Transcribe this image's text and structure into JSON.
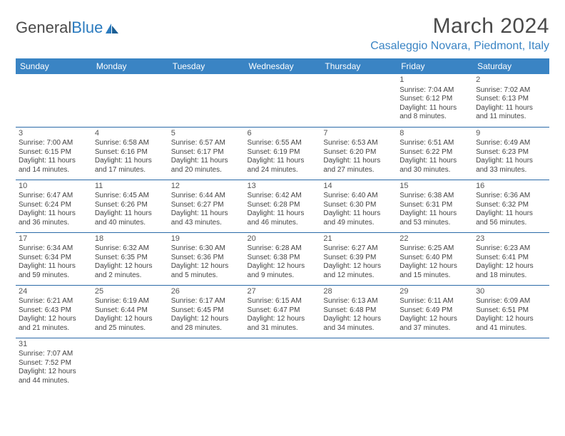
{
  "brand": {
    "part1": "General",
    "part2": "Blue"
  },
  "title": "March 2024",
  "location": "Casaleggio Novara, Piedmont, Italy",
  "colors": {
    "header_bg": "#3a84c4",
    "header_text": "#ffffff",
    "accent": "#2b7bbf",
    "cell_border": "#2b6aa8",
    "body_text": "#444444"
  },
  "weekdays": [
    "Sunday",
    "Monday",
    "Tuesday",
    "Wednesday",
    "Thursday",
    "Friday",
    "Saturday"
  ],
  "weeks": [
    [
      null,
      null,
      null,
      null,
      null,
      {
        "n": "1",
        "sr": "Sunrise: 7:04 AM",
        "ss": "Sunset: 6:12 PM",
        "dl1": "Daylight: 11 hours",
        "dl2": "and 8 minutes."
      },
      {
        "n": "2",
        "sr": "Sunrise: 7:02 AM",
        "ss": "Sunset: 6:13 PM",
        "dl1": "Daylight: 11 hours",
        "dl2": "and 11 minutes."
      }
    ],
    [
      {
        "n": "3",
        "sr": "Sunrise: 7:00 AM",
        "ss": "Sunset: 6:15 PM",
        "dl1": "Daylight: 11 hours",
        "dl2": "and 14 minutes."
      },
      {
        "n": "4",
        "sr": "Sunrise: 6:58 AM",
        "ss": "Sunset: 6:16 PM",
        "dl1": "Daylight: 11 hours",
        "dl2": "and 17 minutes."
      },
      {
        "n": "5",
        "sr": "Sunrise: 6:57 AM",
        "ss": "Sunset: 6:17 PM",
        "dl1": "Daylight: 11 hours",
        "dl2": "and 20 minutes."
      },
      {
        "n": "6",
        "sr": "Sunrise: 6:55 AM",
        "ss": "Sunset: 6:19 PM",
        "dl1": "Daylight: 11 hours",
        "dl2": "and 24 minutes."
      },
      {
        "n": "7",
        "sr": "Sunrise: 6:53 AM",
        "ss": "Sunset: 6:20 PM",
        "dl1": "Daylight: 11 hours",
        "dl2": "and 27 minutes."
      },
      {
        "n": "8",
        "sr": "Sunrise: 6:51 AM",
        "ss": "Sunset: 6:22 PM",
        "dl1": "Daylight: 11 hours",
        "dl2": "and 30 minutes."
      },
      {
        "n": "9",
        "sr": "Sunrise: 6:49 AM",
        "ss": "Sunset: 6:23 PM",
        "dl1": "Daylight: 11 hours",
        "dl2": "and 33 minutes."
      }
    ],
    [
      {
        "n": "10",
        "sr": "Sunrise: 6:47 AM",
        "ss": "Sunset: 6:24 PM",
        "dl1": "Daylight: 11 hours",
        "dl2": "and 36 minutes."
      },
      {
        "n": "11",
        "sr": "Sunrise: 6:45 AM",
        "ss": "Sunset: 6:26 PM",
        "dl1": "Daylight: 11 hours",
        "dl2": "and 40 minutes."
      },
      {
        "n": "12",
        "sr": "Sunrise: 6:44 AM",
        "ss": "Sunset: 6:27 PM",
        "dl1": "Daylight: 11 hours",
        "dl2": "and 43 minutes."
      },
      {
        "n": "13",
        "sr": "Sunrise: 6:42 AM",
        "ss": "Sunset: 6:28 PM",
        "dl1": "Daylight: 11 hours",
        "dl2": "and 46 minutes."
      },
      {
        "n": "14",
        "sr": "Sunrise: 6:40 AM",
        "ss": "Sunset: 6:30 PM",
        "dl1": "Daylight: 11 hours",
        "dl2": "and 49 minutes."
      },
      {
        "n": "15",
        "sr": "Sunrise: 6:38 AM",
        "ss": "Sunset: 6:31 PM",
        "dl1": "Daylight: 11 hours",
        "dl2": "and 53 minutes."
      },
      {
        "n": "16",
        "sr": "Sunrise: 6:36 AM",
        "ss": "Sunset: 6:32 PM",
        "dl1": "Daylight: 11 hours",
        "dl2": "and 56 minutes."
      }
    ],
    [
      {
        "n": "17",
        "sr": "Sunrise: 6:34 AM",
        "ss": "Sunset: 6:34 PM",
        "dl1": "Daylight: 11 hours",
        "dl2": "and 59 minutes."
      },
      {
        "n": "18",
        "sr": "Sunrise: 6:32 AM",
        "ss": "Sunset: 6:35 PM",
        "dl1": "Daylight: 12 hours",
        "dl2": "and 2 minutes."
      },
      {
        "n": "19",
        "sr": "Sunrise: 6:30 AM",
        "ss": "Sunset: 6:36 PM",
        "dl1": "Daylight: 12 hours",
        "dl2": "and 5 minutes."
      },
      {
        "n": "20",
        "sr": "Sunrise: 6:28 AM",
        "ss": "Sunset: 6:38 PM",
        "dl1": "Daylight: 12 hours",
        "dl2": "and 9 minutes."
      },
      {
        "n": "21",
        "sr": "Sunrise: 6:27 AM",
        "ss": "Sunset: 6:39 PM",
        "dl1": "Daylight: 12 hours",
        "dl2": "and 12 minutes."
      },
      {
        "n": "22",
        "sr": "Sunrise: 6:25 AM",
        "ss": "Sunset: 6:40 PM",
        "dl1": "Daylight: 12 hours",
        "dl2": "and 15 minutes."
      },
      {
        "n": "23",
        "sr": "Sunrise: 6:23 AM",
        "ss": "Sunset: 6:41 PM",
        "dl1": "Daylight: 12 hours",
        "dl2": "and 18 minutes."
      }
    ],
    [
      {
        "n": "24",
        "sr": "Sunrise: 6:21 AM",
        "ss": "Sunset: 6:43 PM",
        "dl1": "Daylight: 12 hours",
        "dl2": "and 21 minutes."
      },
      {
        "n": "25",
        "sr": "Sunrise: 6:19 AM",
        "ss": "Sunset: 6:44 PM",
        "dl1": "Daylight: 12 hours",
        "dl2": "and 25 minutes."
      },
      {
        "n": "26",
        "sr": "Sunrise: 6:17 AM",
        "ss": "Sunset: 6:45 PM",
        "dl1": "Daylight: 12 hours",
        "dl2": "and 28 minutes."
      },
      {
        "n": "27",
        "sr": "Sunrise: 6:15 AM",
        "ss": "Sunset: 6:47 PM",
        "dl1": "Daylight: 12 hours",
        "dl2": "and 31 minutes."
      },
      {
        "n": "28",
        "sr": "Sunrise: 6:13 AM",
        "ss": "Sunset: 6:48 PM",
        "dl1": "Daylight: 12 hours",
        "dl2": "and 34 minutes."
      },
      {
        "n": "29",
        "sr": "Sunrise: 6:11 AM",
        "ss": "Sunset: 6:49 PM",
        "dl1": "Daylight: 12 hours",
        "dl2": "and 37 minutes."
      },
      {
        "n": "30",
        "sr": "Sunrise: 6:09 AM",
        "ss": "Sunset: 6:51 PM",
        "dl1": "Daylight: 12 hours",
        "dl2": "and 41 minutes."
      }
    ],
    [
      {
        "n": "31",
        "sr": "Sunrise: 7:07 AM",
        "ss": "Sunset: 7:52 PM",
        "dl1": "Daylight: 12 hours",
        "dl2": "and 44 minutes."
      },
      null,
      null,
      null,
      null,
      null,
      null
    ]
  ]
}
